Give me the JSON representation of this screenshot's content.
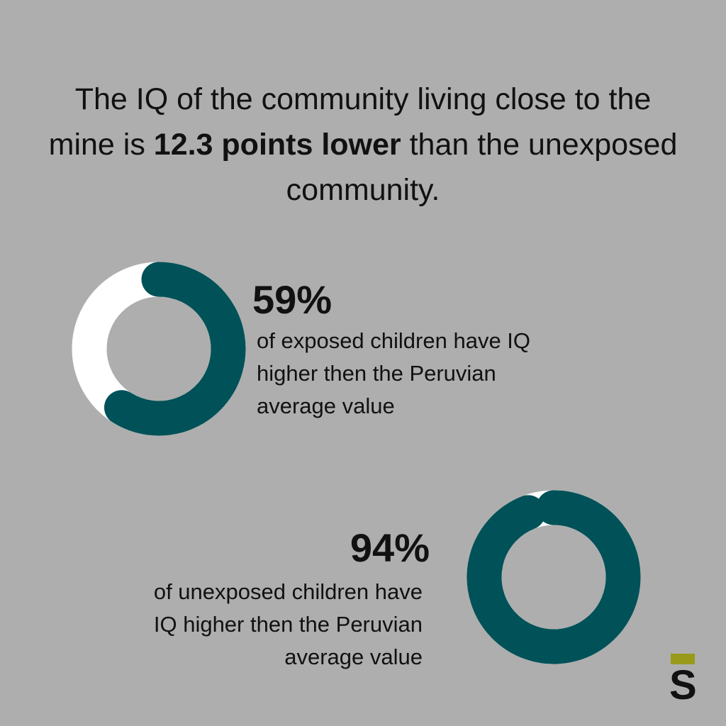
{
  "headline": {
    "before": "The IQ of the community living close to the mine is ",
    "bold": "12.3 points lower",
    "after": " than the unexposed community."
  },
  "chart_data": [
    {
      "type": "donut",
      "values": [
        59
      ],
      "value_labels": [
        "59%"
      ],
      "color": "#005158",
      "track_color": "#ffffff",
      "description": "of exposed children have IQ higher then the Peruvian average value"
    },
    {
      "type": "donut",
      "values": [
        94
      ],
      "value_labels": [
        "94%"
      ],
      "color": "#005158",
      "track_color": "#ffffff",
      "description": "of unexposed children have IQ higher then the Peruvian average value"
    }
  ],
  "logo": "S"
}
